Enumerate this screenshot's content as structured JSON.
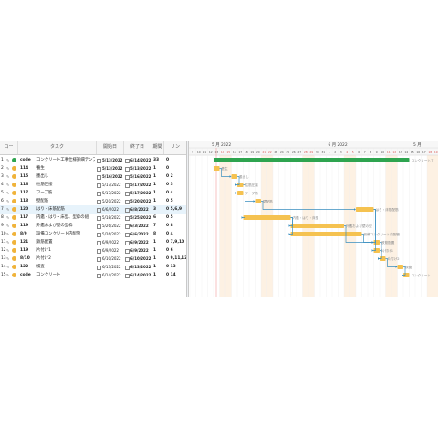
{
  "grid": {
    "columns": [
      "コー",
      "タスク",
      "開始日",
      "終了日",
      "期間",
      "リン"
    ],
    "rows": [
      {
        "num": "1",
        "code": "code",
        "task": "コンクリート工事仕様詳細テンプ",
        "start": "5/13/2022",
        "end": "6/14/2022",
        "dur": "33",
        "links": "0",
        "dot": "#2ea44f"
      },
      {
        "num": "2",
        "code": "114",
        "task": "養生",
        "start": "5/13/2022",
        "end": "5/13/2022",
        "dur": "1",
        "links": "0",
        "dot": "#f0b33a"
      },
      {
        "num": "3",
        "code": "115",
        "task": "墨出し",
        "start": "5/16/2022",
        "end": "5/16/2022",
        "dur": "1",
        "links": "0  2",
        "dot": "#f0b33a"
      },
      {
        "num": "4",
        "code": "116",
        "task": "柱筋圧接",
        "start": "5/17/2022",
        "end": "5/17/2022",
        "dur": "1",
        "links": "0  3",
        "dot": "#f0b33a"
      },
      {
        "num": "5",
        "code": "117",
        "task": "フープ筋",
        "start": "5/17/2022",
        "end": "5/17/2022",
        "dur": "1",
        "links": "0  4",
        "dot": "#f0b33a"
      },
      {
        "num": "6",
        "code": "118",
        "task": "壁配筋",
        "start": "5/20/2022",
        "end": "5/20/2022",
        "dur": "1",
        "links": "0  5",
        "dot": "#f0b33a"
      },
      {
        "num": "7",
        "code": "120",
        "task": "はり・床筋配筋",
        "start": "6/6/2022",
        "end": "6/8/2022",
        "dur": "3",
        "links": "0  5,6,9",
        "dot": "#f0b33a",
        "selected": true
      },
      {
        "num": "8",
        "code": "117",
        "task": "内鑑・はり・床型、型枠の組",
        "start": "5/18/2022",
        "end": "5/25/2022",
        "dur": "6",
        "links": "0  5",
        "dot": "#f0b33a"
      },
      {
        "num": "9",
        "code": "119",
        "task": "外鑑および壁の型枠",
        "start": "5/26/2022",
        "end": "6/3/2022",
        "dur": "7",
        "links": "0  8",
        "dot": "#f0b33a"
      },
      {
        "num": "10",
        "code": "8/9",
        "task": "設備コンクリート内配管",
        "start": "5/26/2022",
        "end": "6/6/2022",
        "dur": "8",
        "links": "0  4",
        "dot": "#f0b33a"
      },
      {
        "num": "11",
        "code": "121",
        "task": "鉄筋配置",
        "start": "6/9/2022",
        "end": "6/9/2022",
        "dur": "1",
        "links": "0  7,9,10",
        "dot": "#f0b33a"
      },
      {
        "num": "12",
        "code": "119",
        "task": "片付け1",
        "start": "6/9/2022",
        "end": "6/9/2022",
        "dur": "1",
        "links": "0  6",
        "dot": "#f0b33a"
      },
      {
        "num": "13",
        "code": "8/10",
        "task": "片付け2",
        "start": "6/10/2022",
        "end": "6/10/2022",
        "dur": "1",
        "links": "0  9,11,12",
        "dot": "#f0b33a"
      },
      {
        "num": "14",
        "code": "122",
        "task": "検査",
        "start": "6/13/2022",
        "end": "6/13/2022",
        "dur": "1",
        "links": "0  13",
        "dot": "#f0b33a"
      },
      {
        "num": "15",
        "code": "code",
        "task": "コンクリート",
        "start": "6/14/2022",
        "end": "6/14/2022",
        "dur": "1",
        "links": "0  14",
        "dot": "#f0b33a"
      }
    ]
  },
  "gantt": {
    "months": [
      "5 月 2022",
      "6 月 2022",
      "5 月"
    ],
    "days": [
      "9",
      "10",
      "11",
      "12",
      "13",
      "14",
      "15",
      "16",
      "17",
      "18",
      "19",
      "20",
      "21",
      "22",
      "23",
      "24",
      "25",
      "26",
      "27",
      "28",
      "29",
      "30",
      "31",
      "1",
      "2",
      "3",
      "4",
      "5",
      "6",
      "7",
      "8",
      "9",
      "10",
      "11",
      "12",
      "13",
      "14",
      "15",
      "16",
      "17",
      "18",
      "19"
    ],
    "weekend_indices": [
      5,
      6,
      12,
      13,
      19,
      20,
      26,
      27,
      33,
      34,
      40,
      41
    ],
    "today_index": 4,
    "labels": [
      "コンクリート工",
      "養生",
      "墨出し",
      "柱筋圧接",
      "フープ筋",
      "壁配筋",
      "はり・床筋配筋",
      "内鑑・はり・床型",
      "外鑑および壁の型",
      "設備コンクリート内配管",
      "鉄筋配置",
      "片付け1",
      "片付け2",
      "検査",
      "コンクリート"
    ],
    "bars": [
      {
        "start": 4,
        "dur": 33
      },
      {
        "start": 4,
        "dur": 1
      },
      {
        "start": 7,
        "dur": 1
      },
      {
        "start": 8,
        "dur": 1
      },
      {
        "start": 8,
        "dur": 1
      },
      {
        "start": 11,
        "dur": 1
      },
      {
        "start": 28,
        "dur": 3
      },
      {
        "start": 9,
        "dur": 8
      },
      {
        "start": 17,
        "dur": 9
      },
      {
        "start": 17,
        "dur": 12
      },
      {
        "start": 31,
        "dur": 1
      },
      {
        "start": 31,
        "dur": 1
      },
      {
        "start": 32,
        "dur": 1
      },
      {
        "start": 35,
        "dur": 1
      },
      {
        "start": 36,
        "dur": 1
      }
    ],
    "colors": {
      "summary": "#2ea44f",
      "task": "#f5c250",
      "link": "#3a8fc0",
      "weekend": "#fdf1e3",
      "today": "#f29b9b"
    }
  }
}
